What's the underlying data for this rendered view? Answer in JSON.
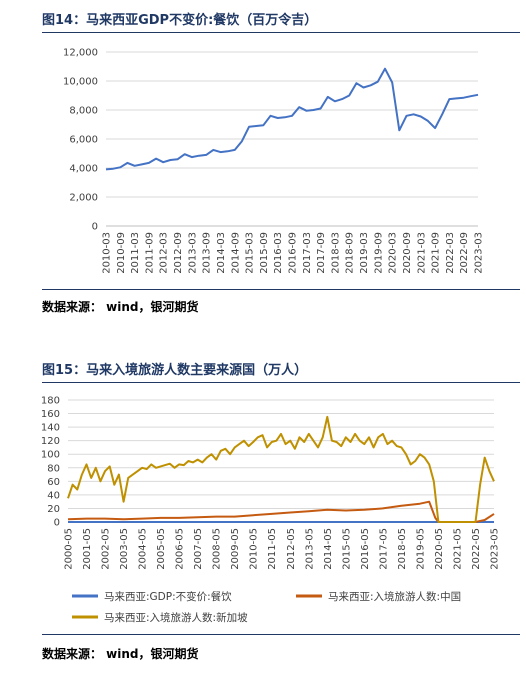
{
  "figure1": {
    "title": "图14：马来西亚GDP不变价:餐饮（百万令吉）",
    "source": "数据来源： wind，银河期货"
  },
  "figure2": {
    "title": "图15：马来入境旅游人数主要来源国（万人）",
    "source": "数据来源： wind，银河期货"
  },
  "chart_data": [
    {
      "type": "line",
      "title": "",
      "xlabel": "",
      "ylabel": "",
      "ylim": [
        0,
        12000
      ],
      "yticks": [
        "0",
        "2,000",
        "4,000",
        "6,000",
        "8,000",
        "10,000",
        "12,000"
      ],
      "xticks": [
        "2010-03",
        "2010-09",
        "2011-03",
        "2011-09",
        "2012-03",
        "2012-09",
        "2013-03",
        "2013-09",
        "2014-03",
        "2014-09",
        "2015-03",
        "2015-09",
        "2016-03",
        "2016-09",
        "2017-03",
        "2017-09",
        "2018-03",
        "2018-09",
        "2019-03",
        "2019-09",
        "2020-03",
        "2020-09",
        "2021-03",
        "2021-09",
        "2022-03",
        "2022-09",
        "2023-03"
      ],
      "grid": true,
      "legend": "none",
      "series": [
        {
          "color": "#4472c4",
          "x": [
            "2010-03",
            "2010-06",
            "2010-09",
            "2010-12",
            "2011-03",
            "2011-06",
            "2011-09",
            "2011-12",
            "2012-03",
            "2012-06",
            "2012-09",
            "2012-12",
            "2013-03",
            "2013-06",
            "2013-09",
            "2013-12",
            "2014-03",
            "2014-06",
            "2014-09",
            "2014-12",
            "2015-03",
            "2015-06",
            "2015-09",
            "2015-12",
            "2016-03",
            "2016-06",
            "2016-09",
            "2016-12",
            "2017-03",
            "2017-06",
            "2017-09",
            "2017-12",
            "2018-03",
            "2018-06",
            "2018-09",
            "2018-12",
            "2019-03",
            "2019-06",
            "2019-09",
            "2019-12",
            "2020-03",
            "2020-06",
            "2020-09",
            "2020-12",
            "2021-03",
            "2021-06",
            "2021-09",
            "2021-12",
            "2022-03",
            "2022-06",
            "2022-09",
            "2022-12",
            "2023-03"
          ],
          "values": [
            3900,
            3950,
            4050,
            4350,
            4150,
            4250,
            4350,
            4650,
            4400,
            4550,
            4600,
            4950,
            4750,
            4850,
            4900,
            5250,
            5100,
            5150,
            5250,
            5850,
            6850,
            6900,
            6950,
            7600,
            7450,
            7500,
            7600,
            8200,
            7950,
            8000,
            8100,
            8900,
            8600,
            8750,
            9000,
            9850,
            9550,
            9700,
            9950,
            10850,
            9900,
            6600,
            7600,
            7700,
            7550,
            7250,
            6750,
            7700,
            8750,
            8800,
            8850,
            8950,
            9050
          ]
        }
      ]
    },
    {
      "type": "line",
      "title": "",
      "xlabel": "",
      "ylabel": "",
      "ylim": [
        0,
        180
      ],
      "yticks": [
        "0",
        "20",
        "40",
        "60",
        "80",
        "100",
        "120",
        "140",
        "160",
        "180"
      ],
      "xticks": [
        "2000-05",
        "2001-05",
        "2002-05",
        "2003-05",
        "2004-05",
        "2005-05",
        "2006-05",
        "2007-05",
        "2008-05",
        "2009-05",
        "2010-05",
        "2011-05",
        "2012-05",
        "2013-05",
        "2014-05",
        "2015-05",
        "2016-05",
        "2017-05",
        "2018-05",
        "2019-05",
        "2020-05",
        "2021-05",
        "2022-05",
        "2023-05"
      ],
      "grid": true,
      "legend": "bottom",
      "series": [
        {
          "name": "马来西亚:GDP:不变价:餐饮",
          "color": "#4472c4",
          "x": [
            "2000-05",
            "2023-05"
          ],
          "values": [
            0,
            0
          ]
        },
        {
          "name": "马来西亚:入境旅游人数:中国",
          "color": "#c55a11",
          "x": [
            "2000-05",
            "2001-05",
            "2002-05",
            "2003-05",
            "2004-05",
            "2005-05",
            "2006-05",
            "2007-05",
            "2008-05",
            "2009-05",
            "2010-05",
            "2011-05",
            "2012-05",
            "2013-05",
            "2014-05",
            "2015-05",
            "2016-05",
            "2017-05",
            "2018-05",
            "2019-05",
            "2019-11",
            "2020-03",
            "2020-05",
            "2021-05",
            "2022-05",
            "2022-11",
            "2023-05"
          ],
          "values": [
            4,
            5,
            5,
            4,
            5,
            6,
            6,
            7,
            8,
            8,
            10,
            12,
            14,
            16,
            18,
            17,
            18,
            20,
            24,
            27,
            30,
            6,
            0,
            0,
            0,
            3,
            12
          ]
        },
        {
          "name": "马来西亚:入境旅游人数:新加坡",
          "color": "#bf9000",
          "x": [
            "2000-05",
            "2000-08",
            "2000-11",
            "2001-02",
            "2001-05",
            "2001-08",
            "2001-11",
            "2002-02",
            "2002-05",
            "2002-08",
            "2002-11",
            "2003-02",
            "2003-05",
            "2003-08",
            "2003-11",
            "2004-02",
            "2004-05",
            "2004-08",
            "2004-11",
            "2005-02",
            "2005-05",
            "2005-08",
            "2005-11",
            "2006-02",
            "2006-05",
            "2006-08",
            "2006-11",
            "2007-02",
            "2007-05",
            "2007-08",
            "2007-11",
            "2008-02",
            "2008-05",
            "2008-08",
            "2008-11",
            "2009-02",
            "2009-05",
            "2009-08",
            "2009-11",
            "2010-02",
            "2010-05",
            "2010-08",
            "2010-11",
            "2011-02",
            "2011-05",
            "2011-08",
            "2011-11",
            "2012-02",
            "2012-05",
            "2012-08",
            "2012-11",
            "2013-02",
            "2013-05",
            "2013-08",
            "2013-11",
            "2014-02",
            "2014-05",
            "2014-08",
            "2014-11",
            "2015-02",
            "2015-05",
            "2015-08",
            "2015-11",
            "2016-02",
            "2016-05",
            "2016-08",
            "2016-11",
            "2017-02",
            "2017-05",
            "2017-08",
            "2017-11",
            "2018-02",
            "2018-05",
            "2018-08",
            "2018-11",
            "2019-02",
            "2019-05",
            "2019-08",
            "2019-11",
            "2020-02",
            "2020-05",
            "2021-05",
            "2022-05",
            "2022-08",
            "2022-11",
            "2023-02",
            "2023-05"
          ],
          "values": [
            35,
            55,
            48,
            70,
            85,
            65,
            80,
            60,
            75,
            82,
            55,
            70,
            30,
            65,
            70,
            75,
            80,
            78,
            85,
            80,
            82,
            84,
            86,
            80,
            85,
            84,
            90,
            88,
            92,
            88,
            95,
            100,
            92,
            105,
            108,
            100,
            110,
            115,
            120,
            112,
            118,
            125,
            128,
            110,
            118,
            120,
            130,
            115,
            120,
            108,
            125,
            118,
            130,
            120,
            110,
            125,
            155,
            120,
            118,
            112,
            125,
            118,
            130,
            120,
            115,
            125,
            110,
            125,
            130,
            115,
            120,
            112,
            110,
            100,
            85,
            90,
            100,
            95,
            85,
            60,
            0,
            0,
            0,
            55,
            95,
            75,
            60
          ]
        }
      ]
    }
  ]
}
